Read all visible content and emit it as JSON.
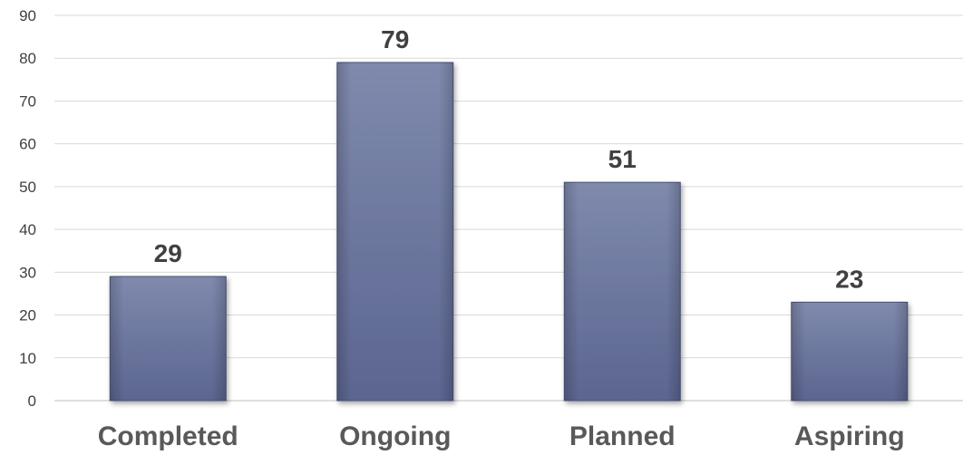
{
  "chart_data": {
    "type": "bar",
    "title": "",
    "xlabel": "",
    "ylabel": "",
    "categories": [
      "Completed",
      "Ongoing",
      "Planned",
      "Aspiring"
    ],
    "values": [
      29,
      79,
      51,
      23
    ],
    "data_labels": [
      "29",
      "79",
      "51",
      "23"
    ],
    "ylim": [
      0,
      90
    ],
    "y_ticks": [
      0,
      10,
      20,
      30,
      40,
      50,
      60,
      70,
      80,
      90
    ],
    "grid": true,
    "legend": "none",
    "colors": {
      "bar_top": "#7f8aad",
      "bar_bottom": "#5b6590",
      "bar_edge": "#4a5278"
    }
  }
}
